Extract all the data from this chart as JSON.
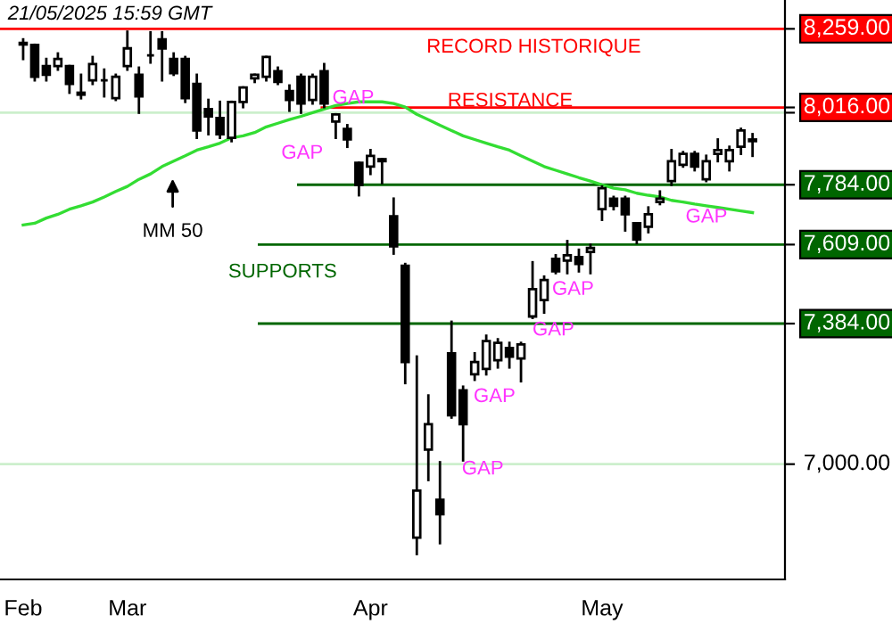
{
  "chart_data": {
    "type": "candlestick",
    "categories": [
      "Feb",
      null,
      null,
      null,
      null,
      null,
      null,
      null,
      null,
      "Mar",
      null,
      null,
      null,
      null,
      null,
      null,
      null,
      null,
      null,
      null,
      null,
      null,
      null,
      null,
      null,
      null,
      null,
      null,
      null,
      null,
      "Apr",
      null,
      null,
      null,
      null,
      null,
      null,
      null,
      null,
      null,
      null,
      null,
      null,
      null,
      null,
      null,
      null,
      null,
      null,
      null,
      "May",
      null,
      null,
      null,
      null,
      null,
      null,
      null,
      null,
      null,
      null,
      null,
      null,
      null
    ],
    "ohlc": [
      [
        8215,
        8226,
        8165,
        8210
      ],
      [
        8209,
        8209,
        8099,
        8110
      ],
      [
        8143,
        8165,
        8099,
        8116
      ],
      [
        8143,
        8182,
        8132,
        8165
      ],
      [
        8143,
        8143,
        8061,
        8088
      ],
      [
        8061,
        8116,
        8044,
        8055
      ],
      [
        8099,
        8171,
        8088,
        8149
      ],
      [
        8099,
        8132,
        8050,
        8099
      ],
      [
        8044,
        8116,
        8039,
        8110
      ],
      [
        8143,
        8250,
        8132,
        8198
      ],
      [
        8116,
        8138,
        8000,
        8050
      ],
      [
        8176,
        8248,
        8154,
        8176
      ],
      [
        8226,
        8248,
        8099,
        8198
      ],
      [
        8165,
        8182,
        8116,
        8121
      ],
      [
        8165,
        8171,
        8033,
        8044
      ],
      [
        8088,
        8116,
        7924,
        7946
      ],
      [
        8011,
        8039,
        7935,
        7989
      ],
      [
        7984,
        8033,
        7924,
        7935
      ],
      [
        7924,
        8033,
        7914,
        8033
      ],
      [
        8033,
        8077,
        8017,
        8077
      ],
      [
        8105,
        8116,
        8094,
        8116
      ],
      [
        8110,
        8171,
        8099,
        8171
      ],
      [
        8127,
        8138,
        8088,
        8094
      ],
      [
        8066,
        8083,
        8006,
        8039
      ],
      [
        8110,
        8116,
        8000,
        8028
      ],
      [
        8039,
        8116,
        8028,
        8110
      ],
      [
        8127,
        8149,
        8017,
        8028
      ],
      [
        7973,
        7995,
        7924,
        7995
      ],
      [
        7951,
        7962,
        7897,
        7919
      ],
      [
        7849,
        7849,
        7753,
        7784
      ],
      [
        7838,
        7887,
        7816,
        7870
      ],
      [
        7860,
        7860,
        7789,
        7854
      ],
      [
        7691,
        7743,
        7583,
        7604
      ],
      [
        7548,
        7553,
        7219,
        7277
      ],
      [
        6807,
        7292,
        6765,
        6930
      ],
      [
        7039,
        7185,
        6958,
        7107
      ],
      [
        6906,
        7005,
        6793,
        6868
      ],
      [
        7301,
        7389,
        7125,
        7131
      ],
      [
        7199,
        7209,
        7010,
        7107
      ],
      [
        7243,
        7301,
        7228,
        7277
      ],
      [
        7258,
        7350,
        7243,
        7335
      ],
      [
        7282,
        7340,
        7262,
        7330
      ],
      [
        7316,
        7330,
        7262,
        7292
      ],
      [
        7287,
        7330,
        7224,
        7326
      ],
      [
        7404,
        7558,
        7400,
        7481
      ],
      [
        7450,
        7517,
        7415,
        7507
      ],
      [
        7568,
        7578,
        7527,
        7532
      ],
      [
        7563,
        7619,
        7527,
        7578
      ],
      [
        7573,
        7594,
        7532,
        7553
      ],
      [
        7588,
        7609,
        7527,
        7599
      ],
      [
        7712,
        7779,
        7681,
        7774
      ],
      [
        7743,
        7748,
        7712,
        7722
      ],
      [
        7743,
        7748,
        7650,
        7697
      ],
      [
        7671,
        7671,
        7614,
        7624
      ],
      [
        7661,
        7717,
        7645,
        7697
      ],
      [
        7733,
        7764,
        7727,
        7743
      ],
      [
        7795,
        7887,
        7784,
        7854
      ],
      [
        7843,
        7881,
        7838,
        7876
      ],
      [
        7876,
        7881,
        7827,
        7838
      ],
      [
        7800,
        7870,
        7795,
        7854
      ],
      [
        7876,
        7919,
        7854,
        7887
      ],
      [
        7854,
        7897,
        7827,
        7887
      ],
      [
        7897,
        7951,
        7876,
        7946
      ],
      [
        7919,
        7935,
        7870,
        7914
      ]
    ],
    "series": [
      {
        "type": "line",
        "color": "#33dd33",
        "values": [
          7666,
          7671,
          7686,
          7697,
          7712,
          7722,
          7733,
          7748,
          7764,
          7779,
          7800,
          7816,
          7838,
          7854,
          7870,
          7887,
          7897,
          7908,
          7924,
          7930,
          7940,
          7957,
          7968,
          7979,
          7989,
          8000,
          8011,
          8022,
          8028,
          8033,
          8033,
          8033,
          8028,
          8017,
          7995,
          7979,
          7962,
          7946,
          7930,
          7919,
          7908,
          7897,
          7887,
          7870,
          7854,
          7838,
          7827,
          7816,
          7805,
          7795,
          7784,
          7774,
          7769,
          7759,
          7753,
          7748,
          7738,
          7733,
          7727,
          7722,
          7717,
          7712,
          7707,
          7702
        ]
      }
    ],
    "log": "y",
    "ylim": [
      6700,
      8350
    ],
    "yticks": [
      {
        "value": 7000,
        "label": "7,000.00"
      },
      {
        "value": 7384,
        "label": "7,384.00"
      },
      {
        "value": 7609,
        "label": "7,609.00"
      },
      {
        "value": 7784,
        "label": "7,784.00"
      },
      {
        "value": 8000,
        "label": null
      },
      {
        "value": 8016,
        "label": "8,016.00"
      },
      {
        "value": 8259,
        "label": "8,259.00"
      }
    ],
    "grid": "y",
    "legend": false,
    "ref_lines": [
      {
        "axis": "y",
        "value": 8259,
        "color": "#ff0000"
      },
      {
        "axis": "y",
        "value": 8016,
        "color": "#ff0000"
      },
      {
        "axis": "y",
        "value": 7784,
        "color": "#006600"
      },
      {
        "axis": "y",
        "value": 7609,
        "color": "#006600"
      },
      {
        "axis": "y",
        "value": 7384,
        "color": "#006600"
      }
    ],
    "annotations": [
      "21/05/2025 15:59 GMT",
      "RECORD HISTORIQUE",
      "RESISTANCE",
      "SUPPORTS",
      "MM 50",
      "GAP",
      "GAP",
      "GAP",
      "GAP",
      "GAP",
      "GAP",
      "GAP"
    ]
  }
}
